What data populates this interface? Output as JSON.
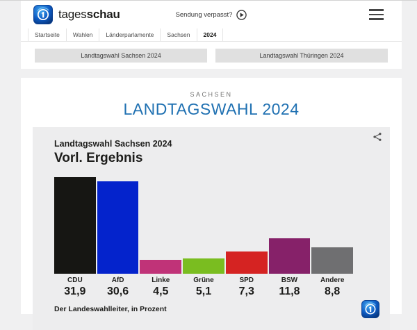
{
  "header": {
    "brand_regular": "tages",
    "brand_bold": "schau",
    "sendung_label": "Sendung verpasst?",
    "breadcrumb": [
      "Startseite",
      "Wahlen",
      "Länderparlamente",
      "Sachsen",
      "2024"
    ]
  },
  "quicklinks": {
    "sachsen": "Landtagswahl Sachsen 2024",
    "thueringen": "Landtagswahl Thüringen 2024"
  },
  "main": {
    "kicker": "SACHSEN",
    "title": "LANDTAGSWAHL 2024"
  },
  "chart_data": {
    "type": "bar",
    "title": "Landtagswahl Sachsen 2024",
    "subtitle": "Vorl. Ergebnis",
    "source": "Der Landeswahlleiter, in Prozent",
    "unit": "percent",
    "categories": [
      "CDU",
      "AfD",
      "Linke",
      "Grüne",
      "SPD",
      "BSW",
      "Andere"
    ],
    "values": [
      31.9,
      30.6,
      4.5,
      5.1,
      7.3,
      11.8,
      8.8
    ],
    "value_labels": [
      "31,9",
      "30,6",
      "4,5",
      "5,1",
      "7,3",
      "11,8",
      "8,8"
    ],
    "bar_colors": [
      "#161613",
      "#0423cc",
      "#c03378",
      "#7abd20",
      "#d52322",
      "#862169",
      "#6f6f71"
    ],
    "ylim": [
      0,
      32
    ],
    "grid": false,
    "legend": false
  },
  "colors": {
    "accent_blue_title": "#2071b2",
    "page_background": "#f0f0f1",
    "card_background": "#ededee",
    "button_background": "#e0e0e0"
  }
}
